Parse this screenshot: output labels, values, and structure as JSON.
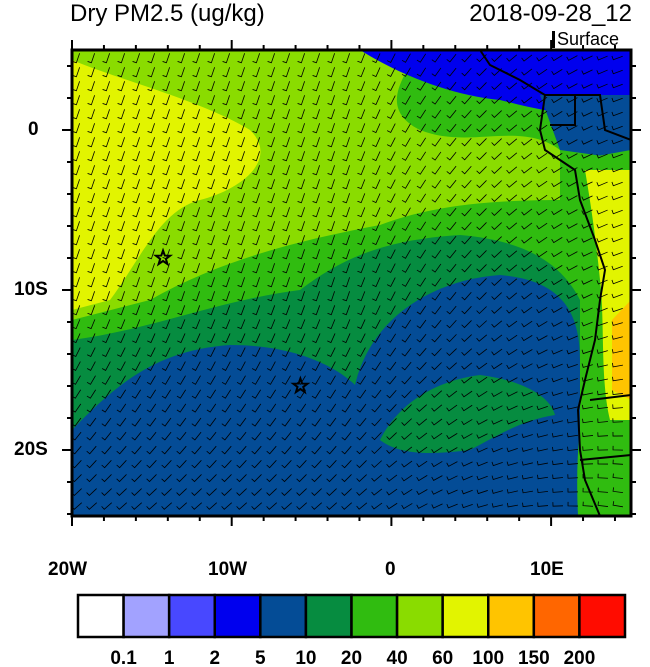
{
  "title": "Dry PM2.5 (ug/kg)",
  "datetime": "2018-09-28_12",
  "level": "Surface",
  "lat_labels": [
    "0",
    "10S",
    "20S"
  ],
  "lon_labels": [
    "20W",
    "10W",
    "0",
    "10E"
  ],
  "extent": {
    "lon": [
      -20,
      15
    ],
    "lat": [
      -24,
      5
    ]
  },
  "colorbar": {
    "colors": [
      "#ffffff",
      "#a2a2ff",
      "#4848ff",
      "#0000ee",
      "#044c96",
      "#068c40",
      "#30bc10",
      "#8adc00",
      "#e2f400",
      "#ffc400",
      "#ff6600",
      "#ff0c00"
    ],
    "labels": [
      "0.1",
      "1",
      "2",
      "5",
      "10",
      "20",
      "40",
      "60",
      "100",
      "150",
      "200"
    ]
  },
  "markers": [
    {
      "icon": "star-icon",
      "lon": -14.3,
      "lat": -8
    },
    {
      "icon": "star-icon",
      "lon": -5.7,
      "lat": -16
    }
  ]
}
